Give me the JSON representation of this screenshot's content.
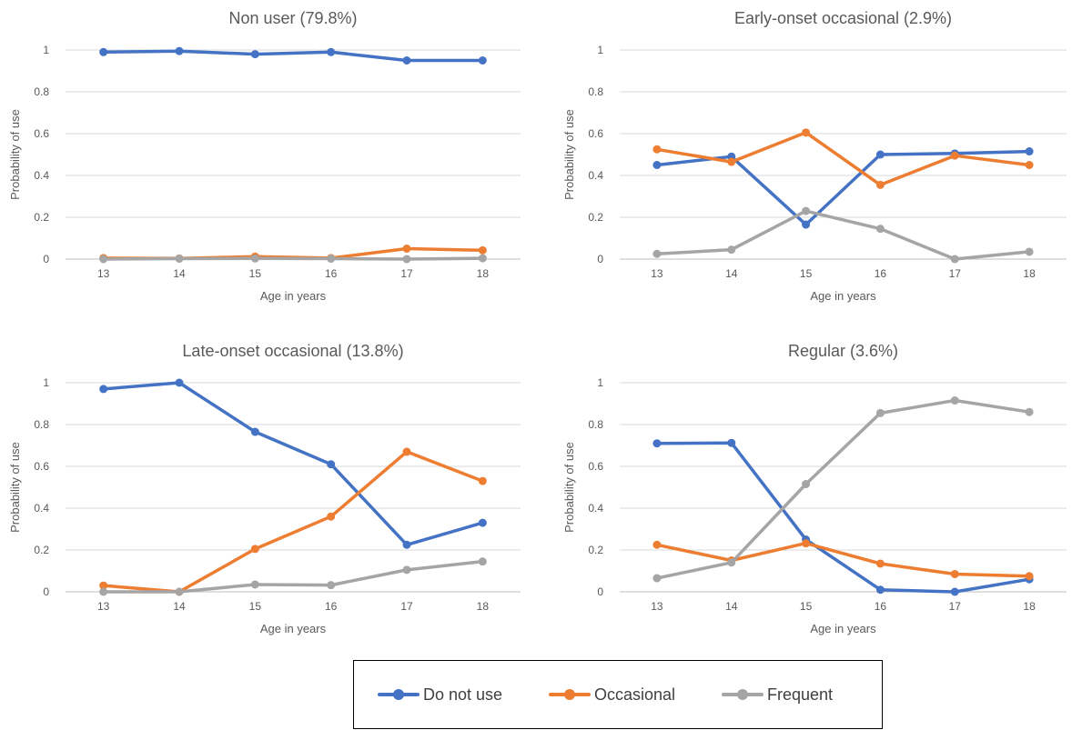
{
  "chart_data": [
    {
      "type": "line",
      "title": "Non user (79.8%)",
      "xlabel": "Age in years",
      "ylabel": "Probability of use",
      "categories": [
        "13",
        "14",
        "15",
        "16",
        "17",
        "18"
      ],
      "ylim": [
        0,
        1
      ],
      "yticks": [
        "0",
        "0.2",
        "0.4",
        "0.6",
        "0.8",
        "1"
      ],
      "grid": true,
      "series": [
        {
          "name": "Do not use",
          "color": "#4472C4",
          "values": [
            0.99,
            0.995,
            0.98,
            0.99,
            0.95,
            0.95
          ]
        },
        {
          "name": "Occasional",
          "color": "#ED7D31",
          "values": [
            0.005,
            0.003,
            0.012,
            0.005,
            0.05,
            0.042
          ]
        },
        {
          "name": "Frequent",
          "color": "#A5A5A5",
          "values": [
            0.0,
            0.002,
            0.003,
            0.002,
            0.0,
            0.004
          ]
        }
      ]
    },
    {
      "type": "line",
      "title": "Early-onset occasional (2.9%)",
      "xlabel": "Age in years",
      "ylabel": "Probability of use",
      "categories": [
        "13",
        "14",
        "15",
        "16",
        "17",
        "18"
      ],
      "ylim": [
        0,
        1
      ],
      "yticks": [
        "0",
        "0.2",
        "0.4",
        "0.6",
        "0.8",
        "1"
      ],
      "grid": true,
      "series": [
        {
          "name": "Do not use",
          "color": "#4472C4",
          "values": [
            0.45,
            0.49,
            0.165,
            0.5,
            0.505,
            0.515
          ]
        },
        {
          "name": "Occasional",
          "color": "#ED7D31",
          "values": [
            0.525,
            0.465,
            0.605,
            0.355,
            0.495,
            0.45
          ]
        },
        {
          "name": "Frequent",
          "color": "#A5A5A5",
          "values": [
            0.025,
            0.045,
            0.23,
            0.145,
            0.0,
            0.035
          ]
        }
      ]
    },
    {
      "type": "line",
      "title": "Late-onset occasional (13.8%)",
      "xlabel": "Age in years",
      "ylabel": "Probability of use",
      "categories": [
        "13",
        "14",
        "15",
        "16",
        "17",
        "18"
      ],
      "ylim": [
        0,
        1
      ],
      "yticks": [
        "0",
        "0.2",
        "0.4",
        "0.6",
        "0.8",
        "1"
      ],
      "grid": true,
      "series": [
        {
          "name": "Do not use",
          "color": "#4472C4",
          "values": [
            0.97,
            1.0,
            0.765,
            0.61,
            0.225,
            0.33
          ]
        },
        {
          "name": "Occasional",
          "color": "#ED7D31",
          "values": [
            0.03,
            0.0,
            0.205,
            0.36,
            0.67,
            0.53
          ]
        },
        {
          "name": "Frequent",
          "color": "#A5A5A5",
          "values": [
            0.0,
            0.0,
            0.035,
            0.032,
            0.105,
            0.145
          ]
        }
      ]
    },
    {
      "type": "line",
      "title": "Regular (3.6%)",
      "xlabel": "Age in years",
      "ylabel": "Probability of use",
      "categories": [
        "13",
        "14",
        "15",
        "16",
        "17",
        "18"
      ],
      "ylim": [
        0,
        1
      ],
      "yticks": [
        "0",
        "0.2",
        "0.4",
        "0.6",
        "0.8",
        "1"
      ],
      "grid": true,
      "series": [
        {
          "name": "Do not use",
          "color": "#4472C4",
          "values": [
            0.71,
            0.712,
            0.25,
            0.01,
            0.0,
            0.06
          ]
        },
        {
          "name": "Occasional",
          "color": "#ED7D31",
          "values": [
            0.225,
            0.15,
            0.232,
            0.135,
            0.085,
            0.075
          ]
        },
        {
          "name": "Frequent",
          "color": "#A5A5A5",
          "values": [
            0.065,
            0.14,
            0.515,
            0.855,
            0.915,
            0.86
          ]
        }
      ]
    }
  ],
  "legend": {
    "placement": "bottom",
    "items": [
      {
        "label": "Do not use",
        "color": "#4472C4"
      },
      {
        "label": "Occasional",
        "color": "#ED7D31"
      },
      {
        "label": "Frequent",
        "color": "#A5A5A5"
      }
    ]
  }
}
